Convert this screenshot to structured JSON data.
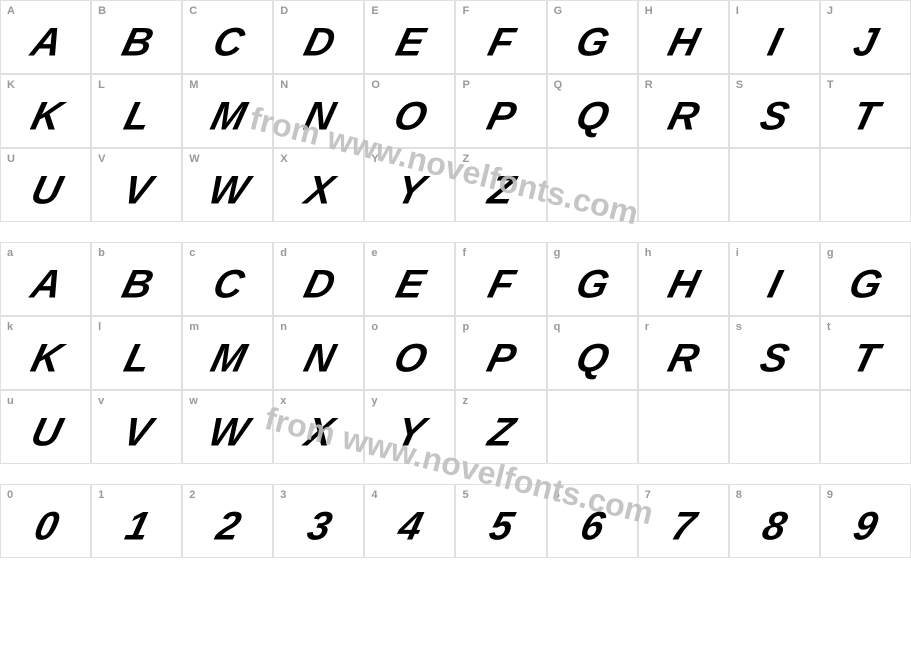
{
  "watermark_text": "from www.novelfonts.com",
  "grid_border_color": "#e0e0e0",
  "label_color": "#999999",
  "glyph_color": "#000000",
  "watermark_color": "#bfbfbf",
  "rows": [
    {
      "cells": [
        {
          "label": "A",
          "glyph": "A"
        },
        {
          "label": "B",
          "glyph": "B"
        },
        {
          "label": "C",
          "glyph": "C"
        },
        {
          "label": "D",
          "glyph": "D"
        },
        {
          "label": "E",
          "glyph": "E"
        },
        {
          "label": "F",
          "glyph": "F"
        },
        {
          "label": "G",
          "glyph": "G"
        },
        {
          "label": "H",
          "glyph": "H"
        },
        {
          "label": "I",
          "glyph": "I"
        },
        {
          "label": "J",
          "glyph": "J"
        }
      ]
    },
    {
      "cells": [
        {
          "label": "K",
          "glyph": "K"
        },
        {
          "label": "L",
          "glyph": "L"
        },
        {
          "label": "M",
          "glyph": "M"
        },
        {
          "label": "N",
          "glyph": "N"
        },
        {
          "label": "O",
          "glyph": "O"
        },
        {
          "label": "P",
          "glyph": "P"
        },
        {
          "label": "Q",
          "glyph": "Q"
        },
        {
          "label": "R",
          "glyph": "R"
        },
        {
          "label": "S",
          "glyph": "S"
        },
        {
          "label": "T",
          "glyph": "T"
        }
      ]
    },
    {
      "cells": [
        {
          "label": "U",
          "glyph": "U"
        },
        {
          "label": "V",
          "glyph": "V"
        },
        {
          "label": "W",
          "glyph": "W"
        },
        {
          "label": "X",
          "glyph": "X"
        },
        {
          "label": "Y",
          "glyph": "Y"
        },
        {
          "label": "Z",
          "glyph": "Z"
        },
        {
          "label": "",
          "glyph": ""
        },
        {
          "label": "",
          "glyph": ""
        },
        {
          "label": "",
          "glyph": ""
        },
        {
          "label": "",
          "glyph": ""
        }
      ]
    },
    {
      "cells": [
        {
          "label": "a",
          "glyph": "A"
        },
        {
          "label": "b",
          "glyph": "B"
        },
        {
          "label": "c",
          "glyph": "C"
        },
        {
          "label": "d",
          "glyph": "D"
        },
        {
          "label": "e",
          "glyph": "E"
        },
        {
          "label": "f",
          "glyph": "F"
        },
        {
          "label": "g",
          "glyph": "G"
        },
        {
          "label": "h",
          "glyph": "H"
        },
        {
          "label": "i",
          "glyph": "I"
        },
        {
          "label": "g",
          "glyph": "G"
        }
      ]
    },
    {
      "cells": [
        {
          "label": "k",
          "glyph": "K"
        },
        {
          "label": "l",
          "glyph": "L"
        },
        {
          "label": "m",
          "glyph": "M"
        },
        {
          "label": "n",
          "glyph": "N"
        },
        {
          "label": "o",
          "glyph": "O"
        },
        {
          "label": "p",
          "glyph": "P"
        },
        {
          "label": "q",
          "glyph": "Q"
        },
        {
          "label": "r",
          "glyph": "R"
        },
        {
          "label": "s",
          "glyph": "S"
        },
        {
          "label": "t",
          "glyph": "T"
        }
      ]
    },
    {
      "cells": [
        {
          "label": "u",
          "glyph": "U"
        },
        {
          "label": "v",
          "glyph": "V"
        },
        {
          "label": "w",
          "glyph": "W"
        },
        {
          "label": "x",
          "glyph": "X"
        },
        {
          "label": "y",
          "glyph": "Y"
        },
        {
          "label": "z",
          "glyph": "Z"
        },
        {
          "label": "",
          "glyph": ""
        },
        {
          "label": "",
          "glyph": ""
        },
        {
          "label": "",
          "glyph": ""
        },
        {
          "label": "",
          "glyph": ""
        }
      ]
    },
    {
      "cells": [
        {
          "label": "0",
          "glyph": "0"
        },
        {
          "label": "1",
          "glyph": "1"
        },
        {
          "label": "2",
          "glyph": "2"
        },
        {
          "label": "3",
          "glyph": "3"
        },
        {
          "label": "4",
          "glyph": "4"
        },
        {
          "label": "5",
          "glyph": "5"
        },
        {
          "label": "6",
          "glyph": "6"
        },
        {
          "label": "7",
          "glyph": "7"
        },
        {
          "label": "8",
          "glyph": "8"
        },
        {
          "label": "9",
          "glyph": "9"
        }
      ]
    }
  ],
  "row_groups": [
    {
      "start": 0,
      "end": 3
    },
    {
      "start": 3,
      "end": 6
    },
    {
      "start": 6,
      "end": 7
    }
  ]
}
